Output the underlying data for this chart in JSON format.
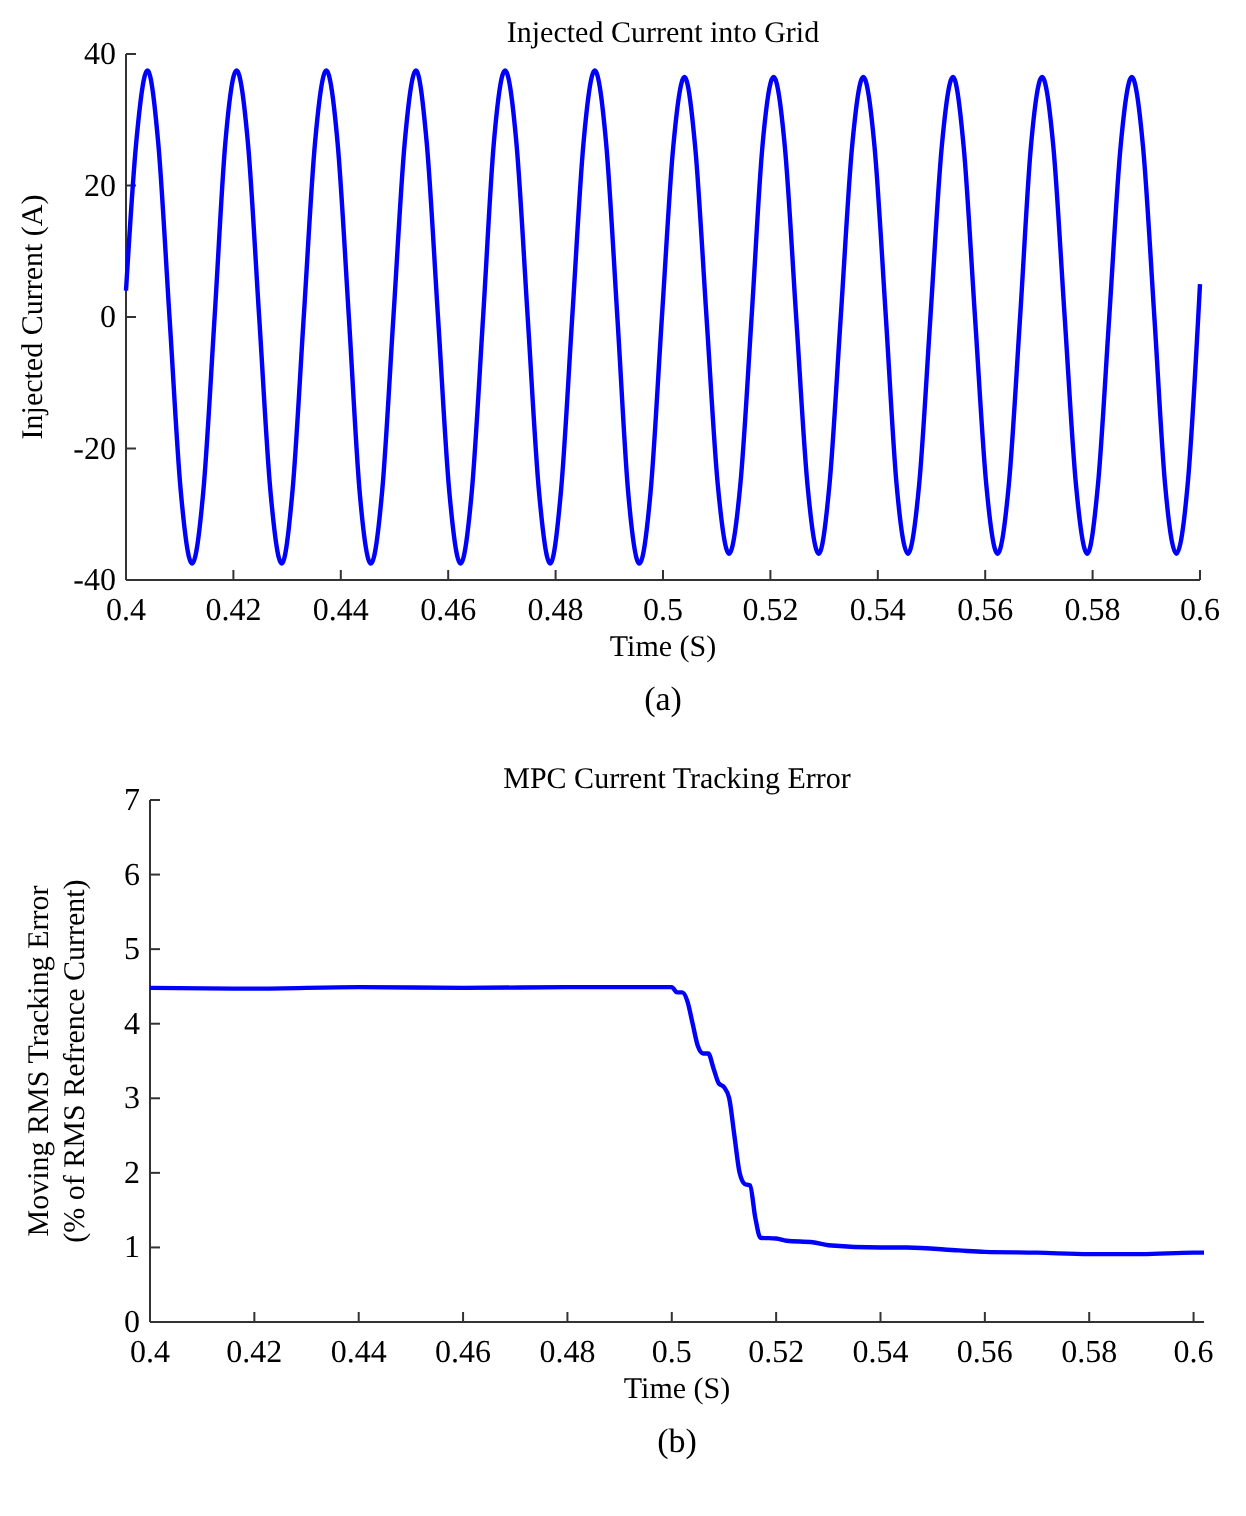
{
  "chart_data": [
    {
      "type": "line",
      "title": "Injected Current into Grid",
      "xlabel": "Time (S)",
      "ylabel": "Injected Current (A)",
      "annotations": [
        "(a)"
      ],
      "xlim": [
        0.4,
        0.6
      ],
      "xticks": [
        0.4,
        0.42,
        0.44,
        0.46,
        0.48,
        0.5,
        0.52,
        0.54,
        0.56,
        0.58,
        0.6
      ],
      "ylim": [
        -40,
        40
      ],
      "yticks": [
        -40,
        -20,
        0,
        20,
        40
      ],
      "series": [
        {
          "color": "#0000ff",
          "x": [
            0.4,
            0.4019,
            0.404,
            0.406,
            0.4081,
            0.4102,
            0.4123,
            0.4144,
            0.4165,
            0.4185,
            0.4206,
            0.4227,
            0.4248,
            0.4269,
            0.429,
            0.431,
            0.4331,
            0.4352,
            0.4373,
            0.4394,
            0.4415,
            0.4435,
            0.4456,
            0.4477,
            0.4498,
            0.4519,
            0.454,
            0.456,
            0.4581,
            0.4602,
            0.4623,
            0.4644,
            0.4665,
            0.4685,
            0.4706,
            0.4727,
            0.4748,
            0.4769,
            0.479,
            0.481,
            0.4831,
            0.4852,
            0.4873,
            0.4894,
            0.4915,
            0.4935,
            0.4956,
            0.4977,
            0.4998,
            0.5019,
            0.504,
            0.506,
            0.5081,
            0.5102,
            0.5123,
            0.5144,
            0.5165,
            0.5185,
            0.5206,
            0.5227,
            0.5248,
            0.5269,
            0.529,
            0.531,
            0.5331,
            0.5352,
            0.5373,
            0.5394,
            0.5415,
            0.5435,
            0.5456,
            0.5477,
            0.5498,
            0.5519,
            0.554,
            0.556,
            0.5581,
            0.5602,
            0.5623,
            0.5644,
            0.5665,
            0.5685,
            0.5706,
            0.5727,
            0.5748,
            0.5769,
            0.579,
            0.581,
            0.5831,
            0.5852,
            0.5873,
            0.5894,
            0.5915,
            0.5935,
            0.5956,
            0.5977,
            0.6
          ],
          "values": [
            4,
            26.5,
            37.5,
            26.5,
            0,
            -26.5,
            -37.5,
            -26.5,
            0,
            26.5,
            37.5,
            26.5,
            0,
            -26.5,
            -37.5,
            -26.5,
            0,
            26.5,
            37.5,
            26.5,
            0,
            -26.5,
            -37.5,
            -26.5,
            0,
            26.5,
            37.5,
            26.5,
            0,
            -26.5,
            -37.5,
            -26.5,
            0,
            26.5,
            37.5,
            26.5,
            0,
            -26.5,
            -37.5,
            -26.5,
            0,
            26.5,
            37.5,
            26.5,
            0,
            -26.5,
            -37.5,
            -26.5,
            0,
            25.8,
            36.5,
            25.8,
            0,
            -25.5,
            -36,
            -25.5,
            0,
            25.8,
            36.5,
            25.8,
            0,
            -25.5,
            -36,
            -25.5,
            0,
            25.8,
            36.5,
            25.8,
            0,
            -25.5,
            -36,
            -25.5,
            0,
            25.8,
            36.5,
            25.8,
            0,
            -25.5,
            -36,
            -25.5,
            0,
            25.8,
            36.5,
            25.8,
            0,
            -25.5,
            -36,
            -25.5,
            0,
            25.8,
            36.5,
            25.8,
            0,
            -25.5,
            -36,
            -25.5,
            5
          ]
        }
      ]
    },
    {
      "type": "line",
      "title": "MPC Current Tracking Error",
      "xlabel": "Time (S)",
      "ylabel": "Moving RMS Tracking Error\n(% of RMS Refrence Current)",
      "annotations": [
        "(b)"
      ],
      "xlim": [
        0.4,
        0.602
      ],
      "xticks": [
        0.4,
        0.42,
        0.44,
        0.46,
        0.48,
        0.5,
        0.52,
        0.54,
        0.56,
        0.58,
        0.6
      ],
      "ylim": [
        0,
        7
      ],
      "yticks": [
        0,
        1,
        2,
        3,
        4,
        5,
        6,
        7
      ],
      "series": [
        {
          "color": "#0000ff",
          "x": [
            0.4,
            0.42,
            0.44,
            0.46,
            0.48,
            0.5,
            0.501,
            0.502,
            0.503,
            0.504,
            0.505,
            0.506,
            0.507,
            0.508,
            0.509,
            0.51,
            0.511,
            0.512,
            0.513,
            0.514,
            0.515,
            0.516,
            0.517,
            0.52,
            0.522,
            0.527,
            0.53,
            0.54,
            0.545,
            0.555,
            0.56,
            0.57,
            0.58,
            0.59,
            0.6,
            0.602
          ],
          "values": [
            4.48,
            4.47,
            4.49,
            4.48,
            4.49,
            4.49,
            4.42,
            4.42,
            4.3,
            4.0,
            3.7,
            3.6,
            3.6,
            3.4,
            3.2,
            3.15,
            3.0,
            2.5,
            2.0,
            1.85,
            1.83,
            1.4,
            1.13,
            1.12,
            1.09,
            1.07,
            1.03,
            1.0,
            1.0,
            0.96,
            0.94,
            0.93,
            0.91,
            0.91,
            0.93,
            0.93
          ]
        }
      ]
    }
  ]
}
